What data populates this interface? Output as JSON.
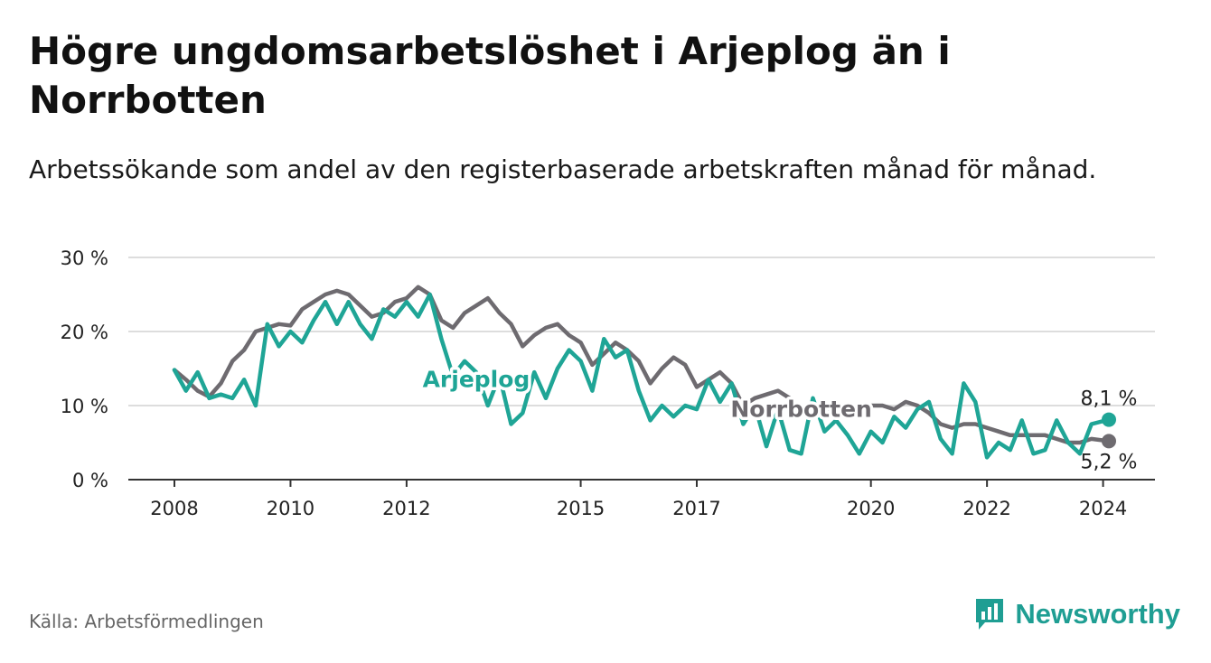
{
  "title": "Högre ungdomsarbetslöshet i Arjeplog än i Norrbotten",
  "subtitle": "Arbetssökande som andel av den registerbaserade arbetskraften månad för månad.",
  "source": "Källa: Arbetsförmedlingen",
  "brand": "Newsworthy",
  "colors": {
    "arjeplog": "#1fa596",
    "norrbotten": "#6e6b70",
    "grid": "#dddddd",
    "axis": "#333333",
    "brand": "#1f9e93"
  },
  "chart_data": {
    "type": "line",
    "title": "Högre ungdomsarbetslöshet i Arjeplog än i Norrbotten",
    "xlabel": "",
    "ylabel": "",
    "xlim": [
      2008,
      2024.1
    ],
    "ylim": [
      0,
      30
    ],
    "y_ticks": [
      0,
      10,
      20,
      30
    ],
    "y_tick_labels": [
      "0 %",
      "10 %",
      "20 %",
      "30 %"
    ],
    "x_ticks": [
      2008,
      2010,
      2012,
      2015,
      2017,
      2020,
      2022,
      2024
    ],
    "x_tick_labels": [
      "2008",
      "2010",
      "2012",
      "2015",
      "2017",
      "2020",
      "2022",
      "2024"
    ],
    "grid": true,
    "series": [
      {
        "name": "Norrbotten",
        "label": "Norrbotten",
        "end_label": "5,2 %",
        "end_value": 5.2,
        "points": [
          [
            2008.0,
            14.8
          ],
          [
            2008.2,
            13.5
          ],
          [
            2008.4,
            12.0
          ],
          [
            2008.6,
            11.2
          ],
          [
            2008.8,
            13.0
          ],
          [
            2009.0,
            16.0
          ],
          [
            2009.2,
            17.5
          ],
          [
            2009.4,
            20.0
          ],
          [
            2009.6,
            20.5
          ],
          [
            2009.8,
            21.0
          ],
          [
            2010.0,
            20.8
          ],
          [
            2010.2,
            23.0
          ],
          [
            2010.4,
            24.0
          ],
          [
            2010.6,
            25.0
          ],
          [
            2010.8,
            25.5
          ],
          [
            2011.0,
            25.0
          ],
          [
            2011.2,
            23.5
          ],
          [
            2011.4,
            22.0
          ],
          [
            2011.6,
            22.5
          ],
          [
            2011.8,
            24.0
          ],
          [
            2012.0,
            24.5
          ],
          [
            2012.2,
            26.0
          ],
          [
            2012.4,
            25.0
          ],
          [
            2012.6,
            21.5
          ],
          [
            2012.8,
            20.5
          ],
          [
            2013.0,
            22.5
          ],
          [
            2013.2,
            23.5
          ],
          [
            2013.4,
            24.5
          ],
          [
            2013.6,
            22.5
          ],
          [
            2013.8,
            21.0
          ],
          [
            2014.0,
            18.0
          ],
          [
            2014.2,
            19.5
          ],
          [
            2014.4,
            20.5
          ],
          [
            2014.6,
            21.0
          ],
          [
            2014.8,
            19.5
          ],
          [
            2015.0,
            18.5
          ],
          [
            2015.2,
            15.5
          ],
          [
            2015.4,
            17.0
          ],
          [
            2015.6,
            18.5
          ],
          [
            2015.8,
            17.5
          ],
          [
            2016.0,
            16.0
          ],
          [
            2016.2,
            13.0
          ],
          [
            2016.4,
            15.0
          ],
          [
            2016.6,
            16.5
          ],
          [
            2016.8,
            15.5
          ],
          [
            2017.0,
            12.5
          ],
          [
            2017.2,
            13.5
          ],
          [
            2017.4,
            14.5
          ],
          [
            2017.6,
            13.0
          ],
          [
            2017.8,
            10.0
          ],
          [
            2018.0,
            11.0
          ],
          [
            2018.2,
            11.5
          ],
          [
            2018.4,
            12.0
          ],
          [
            2018.6,
            11.0
          ],
          [
            2018.8,
            9.0
          ],
          [
            2019.0,
            9.5
          ],
          [
            2019.2,
            9.0
          ],
          [
            2019.4,
            9.5
          ],
          [
            2019.6,
            9.0
          ],
          [
            2019.8,
            8.5
          ],
          [
            2020.0,
            10.0
          ],
          [
            2020.2,
            10.0
          ],
          [
            2020.4,
            9.5
          ],
          [
            2020.6,
            10.5
          ],
          [
            2020.8,
            10.0
          ],
          [
            2021.0,
            9.0
          ],
          [
            2021.2,
            7.5
          ],
          [
            2021.4,
            7.0
          ],
          [
            2021.6,
            7.5
          ],
          [
            2021.8,
            7.5
          ],
          [
            2022.0,
            7.0
          ],
          [
            2022.2,
            6.5
          ],
          [
            2022.4,
            6.0
          ],
          [
            2022.6,
            6.0
          ],
          [
            2022.8,
            6.0
          ],
          [
            2023.0,
            6.0
          ],
          [
            2023.2,
            5.5
          ],
          [
            2023.4,
            5.0
          ],
          [
            2023.6,
            5.0
          ],
          [
            2023.8,
            5.5
          ],
          [
            2024.1,
            5.2
          ]
        ]
      },
      {
        "name": "Arjeplog",
        "label": "Arjeplog",
        "end_label": "8,1 %",
        "end_value": 8.1,
        "points": [
          [
            2008.0,
            14.8
          ],
          [
            2008.2,
            12.0
          ],
          [
            2008.4,
            14.5
          ],
          [
            2008.6,
            11.0
          ],
          [
            2008.8,
            11.5
          ],
          [
            2009.0,
            11.0
          ],
          [
            2009.2,
            13.5
          ],
          [
            2009.4,
            10.0
          ],
          [
            2009.6,
            21.0
          ],
          [
            2009.8,
            18.0
          ],
          [
            2010.0,
            20.0
          ],
          [
            2010.2,
            18.5
          ],
          [
            2010.4,
            21.5
          ],
          [
            2010.6,
            24.0
          ],
          [
            2010.8,
            21.0
          ],
          [
            2011.0,
            24.0
          ],
          [
            2011.2,
            21.0
          ],
          [
            2011.4,
            19.0
          ],
          [
            2011.6,
            23.0
          ],
          [
            2011.8,
            22.0
          ],
          [
            2012.0,
            24.0
          ],
          [
            2012.2,
            22.0
          ],
          [
            2012.4,
            25.0
          ],
          [
            2012.6,
            19.0
          ],
          [
            2012.8,
            14.0
          ],
          [
            2013.0,
            16.0
          ],
          [
            2013.2,
            14.5
          ],
          [
            2013.4,
            10.0
          ],
          [
            2013.6,
            14.0
          ],
          [
            2013.8,
            7.5
          ],
          [
            2014.0,
            9.0
          ],
          [
            2014.2,
            14.5
          ],
          [
            2014.4,
            11.0
          ],
          [
            2014.6,
            15.0
          ],
          [
            2014.8,
            17.5
          ],
          [
            2015.0,
            16.0
          ],
          [
            2015.2,
            12.0
          ],
          [
            2015.4,
            19.0
          ],
          [
            2015.6,
            16.5
          ],
          [
            2015.8,
            17.5
          ],
          [
            2016.0,
            12.0
          ],
          [
            2016.2,
            8.0
          ],
          [
            2016.4,
            10.0
          ],
          [
            2016.6,
            8.5
          ],
          [
            2016.8,
            10.0
          ],
          [
            2017.0,
            9.5
          ],
          [
            2017.2,
            13.5
          ],
          [
            2017.4,
            10.5
          ],
          [
            2017.6,
            13.0
          ],
          [
            2017.8,
            7.5
          ],
          [
            2018.0,
            10.0
          ],
          [
            2018.2,
            4.5
          ],
          [
            2018.4,
            9.5
          ],
          [
            2018.6,
            4.0
          ],
          [
            2018.8,
            3.5
          ],
          [
            2019.0,
            11.0
          ],
          [
            2019.2,
            6.5
          ],
          [
            2019.4,
            8.0
          ],
          [
            2019.6,
            6.0
          ],
          [
            2019.8,
            3.5
          ],
          [
            2020.0,
            6.5
          ],
          [
            2020.2,
            5.0
          ],
          [
            2020.4,
            8.5
          ],
          [
            2020.6,
            7.0
          ],
          [
            2020.8,
            9.5
          ],
          [
            2021.0,
            10.5
          ],
          [
            2021.2,
            5.5
          ],
          [
            2021.4,
            3.5
          ],
          [
            2021.6,
            13.0
          ],
          [
            2021.8,
            10.5
          ],
          [
            2022.0,
            3.0
          ],
          [
            2022.2,
            5.0
          ],
          [
            2022.4,
            4.0
          ],
          [
            2022.6,
            8.0
          ],
          [
            2022.8,
            3.5
          ],
          [
            2023.0,
            4.0
          ],
          [
            2023.2,
            8.0
          ],
          [
            2023.4,
            5.0
          ],
          [
            2023.6,
            3.5
          ],
          [
            2023.8,
            7.5
          ],
          [
            2024.1,
            8.1
          ]
        ]
      }
    ]
  }
}
